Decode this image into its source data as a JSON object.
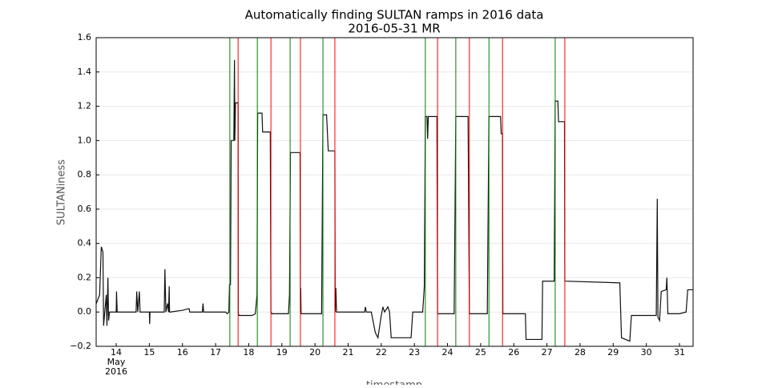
{
  "chart_data": {
    "type": "line",
    "title": "Automatically finding SULTAN ramps in 2016 data",
    "subtitle": "2016-05-31 MR",
    "y_label": "SULTANiness",
    "x_label": "timestamp",
    "x_month": "May",
    "x_year": "2016",
    "xlim": [
      13.395,
      31.411
    ],
    "xticks": [
      14,
      15,
      16,
      17,
      18,
      19,
      20,
      21,
      22,
      23,
      24,
      25,
      26,
      27,
      28,
      29,
      30,
      31
    ],
    "ylim": [
      -0.2,
      1.6
    ],
    "yticks": [
      {
        "value": -0.2,
        "label": "−0.2"
      },
      {
        "value": 0,
        "label": "0.0"
      },
      0.2,
      0.4,
      0.6,
      0.8,
      {
        "value": 1,
        "label": "1.0"
      },
      1.2,
      1.4,
      1.6
    ],
    "grid": true,
    "series": [
      {
        "color": "#111111",
        "x": [
          13.4,
          13.5,
          13.55,
          13.6,
          13.62,
          13.7,
          13.72,
          13.75,
          13.77,
          13.8,
          14.0,
          14.01,
          14.03,
          14.6,
          14.62,
          14.65,
          14.7,
          14.72,
          14.75,
          15.0,
          15.01,
          15.02,
          15.45,
          15.47,
          15.5,
          15.55,
          15.58,
          15.6,
          15.61,
          15.63,
          16.0,
          16.2,
          16.22,
          16.6,
          16.62,
          16.64,
          17.3,
          17.35,
          17.4,
          17.42,
          17.45,
          17.47,
          17.55,
          17.57,
          17.58,
          17.6,
          17.68,
          17.685,
          17.7,
          18.1,
          18.2,
          18.25,
          18.27,
          18.4,
          18.42,
          18.65,
          18.67,
          18.7,
          19.2,
          19.23,
          19.26,
          19.55,
          19.56,
          19.57,
          19.58,
          20.2,
          20.24,
          20.35,
          20.4,
          20.6,
          20.61,
          20.63,
          20.65,
          21.5,
          21.52,
          21.55,
          21.7,
          21.75,
          21.82,
          21.9,
          22.0,
          22.05,
          22.1,
          22.2,
          22.25,
          22.3,
          22.9,
          22.95,
          23.25,
          23.3,
          23.33,
          23.38,
          23.4,
          23.42,
          23.68,
          23.7,
          24.2,
          24.25,
          24.62,
          24.66,
          25.2,
          25.25,
          25.6,
          25.62,
          25.66,
          25.67,
          26.35,
          26.37,
          26.85,
          26.87,
          27.22,
          27.25,
          27.33,
          27.35,
          27.53,
          27.54,
          29.2,
          29.25,
          29.5,
          29.55,
          30.3,
          30.33,
          30.35,
          30.4,
          30.45,
          30.6,
          30.62,
          30.65,
          31.0,
          31.2,
          31.25,
          31.4
        ],
        "values": [
          0.05,
          0.1,
          0.38,
          0.35,
          -0.08,
          0.1,
          -0.08,
          0.2,
          -0.05,
          0.0,
          0.0,
          0.12,
          0.0,
          0.0,
          0.12,
          0.0,
          0.12,
          0.0,
          0.0,
          0.0,
          -0.07,
          0.0,
          0.0,
          0.25,
          0.0,
          0.05,
          0.0,
          0.15,
          0.0,
          0.0,
          0.01,
          0.02,
          0.0,
          0.0,
          0.05,
          0.0,
          0.0,
          -0.01,
          0.0,
          0.16,
          0.16,
          1.0,
          1.0,
          1.47,
          1.0,
          1.22,
          1.22,
          0.0,
          -0.02,
          -0.02,
          -0.01,
          0.1,
          1.16,
          1.16,
          1.05,
          1.05,
          0.0,
          -0.01,
          -0.01,
          0.1,
          0.93,
          0.93,
          0.0,
          0.14,
          -0.01,
          -0.01,
          1.15,
          1.15,
          0.94,
          0.94,
          0.0,
          0.14,
          0.0,
          0.0,
          0.03,
          0.0,
          0.0,
          -0.05,
          -0.12,
          -0.15,
          -0.02,
          0.03,
          0.0,
          0.03,
          0.0,
          -0.15,
          -0.15,
          0.0,
          0.0,
          0.15,
          1.14,
          1.14,
          1.01,
          1.14,
          1.14,
          -0.01,
          -0.01,
          1.14,
          1.14,
          -0.01,
          -0.01,
          1.14,
          1.14,
          1.04,
          1.04,
          -0.01,
          -0.01,
          -0.16,
          -0.16,
          0.18,
          0.18,
          1.23,
          1.23,
          1.11,
          1.11,
          0.18,
          0.17,
          -0.15,
          -0.17,
          -0.02,
          -0.02,
          0.66,
          -0.03,
          -0.05,
          0.12,
          0.13,
          0.2,
          -0.01,
          -0.01,
          0.0,
          0.13,
          0.13
        ]
      }
    ],
    "ramp_starts": {
      "color": "#008000",
      "x": [
        17.43,
        18.26,
        19.25,
        20.24,
        23.33,
        24.25,
        25.25,
        27.25
      ]
    },
    "ramp_ends": {
      "color": "#ff0000",
      "x": [
        17.68,
        18.67,
        19.56,
        20.6,
        23.7,
        24.66,
        25.66,
        27.54
      ]
    }
  }
}
